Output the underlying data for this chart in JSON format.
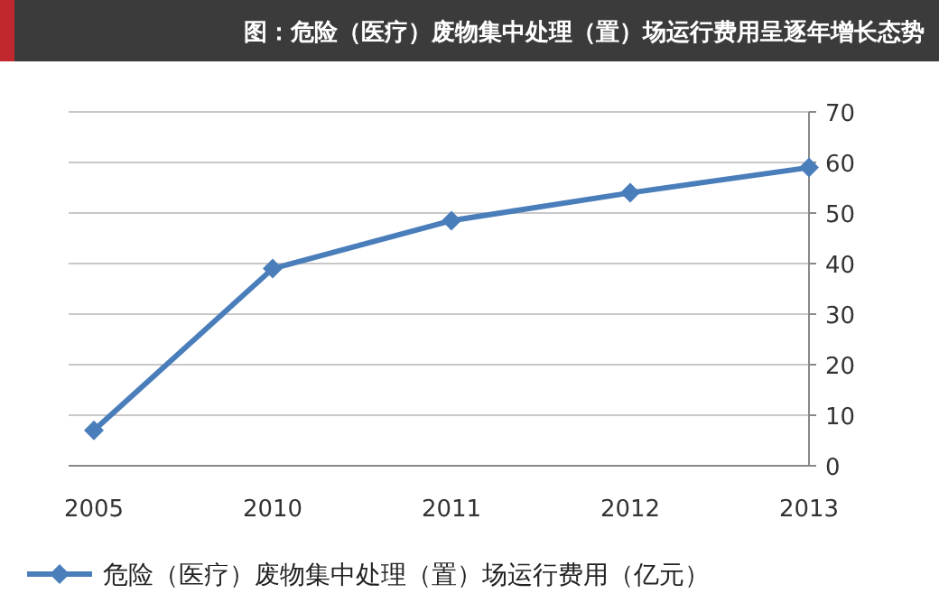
{
  "chart_data": {
    "type": "line",
    "title": "图：危险（医疗）废物集中处理（置）场运行费用呈逐年增长态势",
    "categories": [
      "2005",
      "2010",
      "2011",
      "2012",
      "2013"
    ],
    "series": [
      {
        "name": "危险（医疗）废物集中处理（置）场运行费用（亿元）",
        "color": "#4a7ebb",
        "values": [
          7,
          39,
          48.5,
          54,
          59
        ]
      }
    ],
    "ylim": [
      0,
      70
    ],
    "yticks": [
      0,
      10,
      20,
      30,
      40,
      50,
      60,
      70
    ],
    "grid": "y",
    "legend": "bottom",
    "marker": "diamond",
    "line_style": "solid"
  }
}
